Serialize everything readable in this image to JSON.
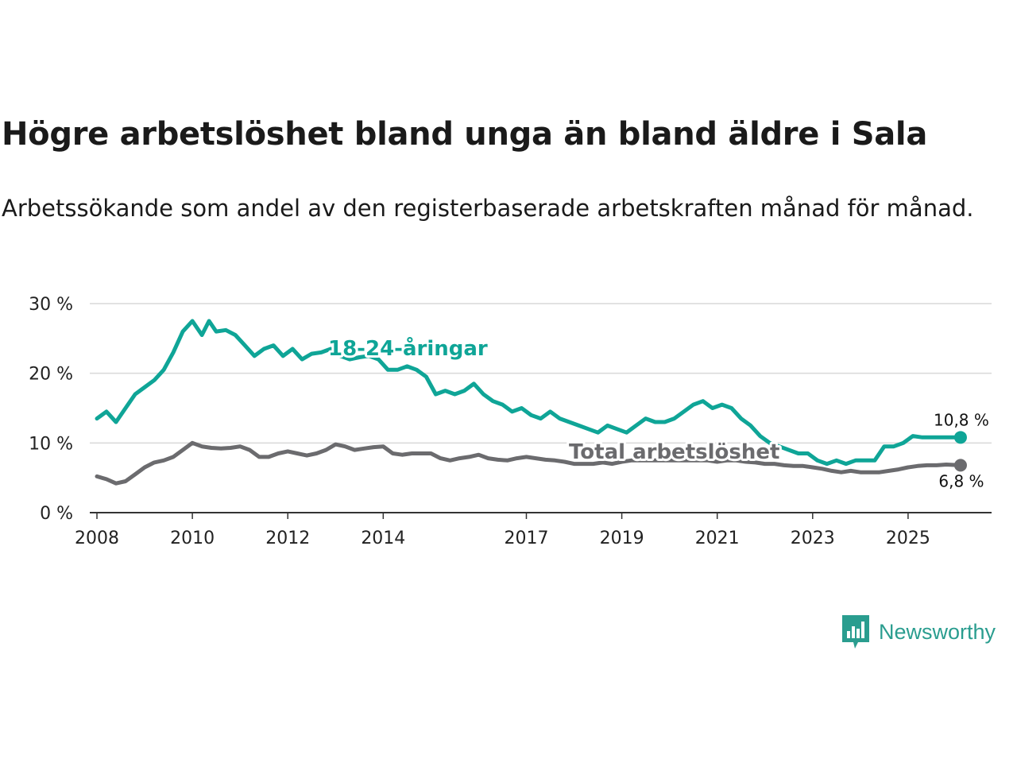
{
  "title": "Högre arbetslöshet bland unga än bland äldre i Sala",
  "subtitle": "Arbetssökande som andel av den registerbaserade arbetskraften månad för månad.",
  "brand": {
    "name": "Newsworthy"
  },
  "colors": {
    "youth": "#0fa597",
    "total": "#6b6b6e",
    "grid": "#d9d9d9",
    "axis": "#333333"
  },
  "chart_data": {
    "type": "line",
    "title": "Högre arbetslöshet bland unga än bland äldre i Sala",
    "xlabel": "",
    "ylabel": "",
    "ylim": [
      0,
      30
    ],
    "xlim": [
      2007.85,
      2026.75
    ],
    "y_ticks": [
      0,
      10,
      20,
      30
    ],
    "y_tick_labels": [
      "0 %",
      "10 %",
      "20 %",
      "30 %"
    ],
    "x_ticks": [
      2008,
      2010,
      2012,
      2014,
      2017,
      2019,
      2021,
      2023,
      2025
    ],
    "x_tick_labels": [
      "2008",
      "2010",
      "2012",
      "2014",
      "2017",
      "2019",
      "2021",
      "2023",
      "2025"
    ],
    "grid": true,
    "legend": "inline labels",
    "series": [
      {
        "name": "18-24-åringar",
        "label": "18-24-åringar",
        "end_label": "10,8 %",
        "x": [
          2008.0,
          2008.2,
          2008.4,
          2008.6,
          2008.8,
          2009.0,
          2009.2,
          2009.4,
          2009.6,
          2009.8,
          2010.0,
          2010.2,
          2010.35,
          2010.5,
          2010.7,
          2010.9,
          2011.1,
          2011.3,
          2011.5,
          2011.7,
          2011.9,
          2012.1,
          2012.3,
          2012.5,
          2012.7,
          2012.9,
          2013.1,
          2013.3,
          2013.5,
          2013.7,
          2013.9,
          2014.1,
          2014.3,
          2014.5,
          2014.7,
          2014.9,
          2015.1,
          2015.3,
          2015.5,
          2015.7,
          2015.9,
          2016.1,
          2016.3,
          2016.5,
          2016.7,
          2016.9,
          2017.1,
          2017.3,
          2017.5,
          2017.7,
          2017.9,
          2018.1,
          2018.3,
          2018.5,
          2018.7,
          2018.9,
          2019.1,
          2019.3,
          2019.5,
          2019.7,
          2019.9,
          2020.1,
          2020.3,
          2020.5,
          2020.7,
          2020.9,
          2021.1,
          2021.3,
          2021.5,
          2021.7,
          2021.9,
          2022.1,
          2022.3,
          2022.5,
          2022.7,
          2022.9,
          2023.1,
          2023.3,
          2023.5,
          2023.7,
          2023.9,
          2024.1,
          2024.3,
          2024.5,
          2024.7,
          2024.9,
          2025.1,
          2025.3,
          2025.5,
          2025.7,
          2025.9,
          2026.1
        ],
        "values": [
          13.5,
          14.5,
          13.0,
          15.0,
          17.0,
          18.0,
          19.0,
          20.5,
          23.0,
          26.0,
          27.5,
          25.5,
          27.5,
          26.0,
          26.2,
          25.5,
          24.0,
          22.5,
          23.5,
          24.0,
          22.5,
          23.5,
          22.0,
          22.8,
          23.0,
          23.5,
          22.5,
          22.0,
          22.3,
          22.5,
          22.0,
          20.5,
          20.5,
          21.0,
          20.5,
          19.5,
          17.0,
          17.5,
          17.0,
          17.5,
          18.5,
          17.0,
          16.0,
          15.5,
          14.5,
          15.0,
          14.0,
          13.5,
          14.5,
          13.5,
          13.0,
          12.5,
          12.0,
          11.5,
          12.5,
          12.0,
          11.5,
          12.5,
          13.5,
          13.0,
          13.0,
          13.5,
          14.5,
          15.5,
          16.0,
          15.0,
          15.5,
          15.0,
          13.5,
          12.5,
          11.0,
          10.0,
          9.5,
          9.0,
          8.5,
          8.5,
          7.5,
          7.0,
          7.5,
          7.0,
          7.5,
          7.5,
          7.5,
          9.5,
          9.5,
          10.0,
          11.0,
          10.8,
          10.8,
          10.8,
          10.8,
          10.8
        ]
      },
      {
        "name": "Total arbetslöshet",
        "label": "Total arbetslöshet",
        "end_label": "6,8 %",
        "x": [
          2008.0,
          2008.2,
          2008.4,
          2008.6,
          2008.8,
          2009.0,
          2009.2,
          2009.4,
          2009.6,
          2009.8,
          2010.0,
          2010.2,
          2010.4,
          2010.6,
          2010.8,
          2011.0,
          2011.2,
          2011.4,
          2011.6,
          2011.8,
          2012.0,
          2012.2,
          2012.4,
          2012.6,
          2012.8,
          2013.0,
          2013.2,
          2013.4,
          2013.6,
          2013.8,
          2014.0,
          2014.2,
          2014.4,
          2014.6,
          2014.8,
          2015.0,
          2015.2,
          2015.4,
          2015.6,
          2015.8,
          2016.0,
          2016.2,
          2016.4,
          2016.6,
          2016.8,
          2017.0,
          2017.2,
          2017.4,
          2017.6,
          2017.8,
          2018.0,
          2018.2,
          2018.4,
          2018.6,
          2018.8,
          2019.0,
          2019.2,
          2019.4,
          2019.6,
          2019.8,
          2020.0,
          2020.2,
          2020.4,
          2020.6,
          2020.8,
          2021.0,
          2021.2,
          2021.4,
          2021.6,
          2021.8,
          2022.0,
          2022.2,
          2022.4,
          2022.6,
          2022.8,
          2023.0,
          2023.2,
          2023.4,
          2023.6,
          2023.8,
          2024.0,
          2024.2,
          2024.4,
          2024.6,
          2024.8,
          2025.0,
          2025.2,
          2025.4,
          2025.6,
          2025.8,
          2026.1
        ],
        "values": [
          5.2,
          4.8,
          4.2,
          4.5,
          5.5,
          6.5,
          7.2,
          7.5,
          8.0,
          9.0,
          10.0,
          9.5,
          9.3,
          9.2,
          9.3,
          9.5,
          9.0,
          8.0,
          8.0,
          8.5,
          8.8,
          8.5,
          8.2,
          8.5,
          9.0,
          9.8,
          9.5,
          9.0,
          9.2,
          9.4,
          9.5,
          8.5,
          8.3,
          8.5,
          8.5,
          8.5,
          7.8,
          7.5,
          7.8,
          8.0,
          8.3,
          7.8,
          7.6,
          7.5,
          7.8,
          8.0,
          7.8,
          7.6,
          7.5,
          7.3,
          7.0,
          7.0,
          7.0,
          7.2,
          7.0,
          7.3,
          7.5,
          7.5,
          7.5,
          7.5,
          7.5,
          7.5,
          7.5,
          7.5,
          7.5,
          7.3,
          7.5,
          7.5,
          7.3,
          7.2,
          7.0,
          7.0,
          6.8,
          6.7,
          6.7,
          6.5,
          6.3,
          6.0,
          5.8,
          6.0,
          5.8,
          5.8,
          5.8,
          6.0,
          6.2,
          6.5,
          6.7,
          6.8,
          6.8,
          6.9,
          6.8
        ]
      }
    ]
  }
}
